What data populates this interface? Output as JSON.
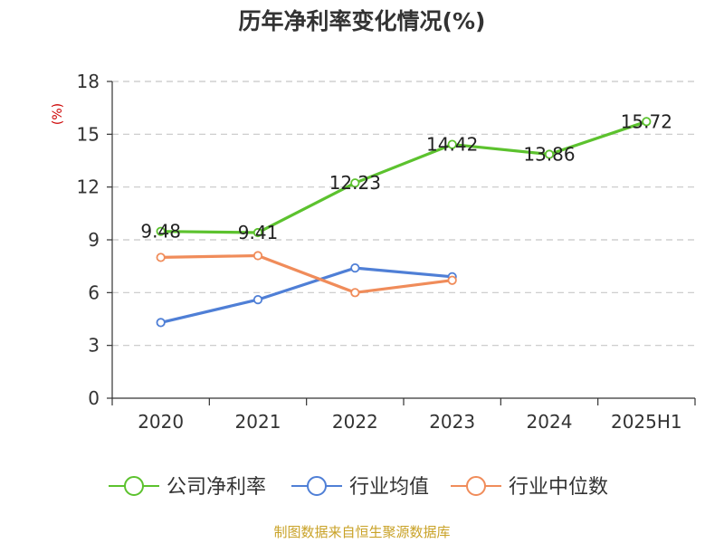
{
  "chart_data": {
    "type": "line",
    "title": "历年净利率变化情况(%)",
    "ylabel": "(%)",
    "xlabel": "",
    "categories": [
      "2020",
      "2021",
      "2022",
      "2023",
      "2024",
      "2025H1"
    ],
    "ylim": [
      0,
      18
    ],
    "yticks": [
      0,
      3,
      6,
      9,
      12,
      15,
      18
    ],
    "grid": "horizontal dashed",
    "legend_position": "bottom",
    "series": [
      {
        "name": "公司净利率",
        "color": "#5cc22e",
        "values": [
          9.48,
          9.41,
          12.23,
          14.42,
          13.86,
          15.72
        ],
        "labels": [
          "9.48",
          "9.41",
          "12.23",
          "14.42",
          "13.86",
          "15.72"
        ]
      },
      {
        "name": "行业均值",
        "color": "#4f7fd6",
        "values": [
          4.3,
          5.6,
          7.4,
          6.9,
          null,
          null
        ]
      },
      {
        "name": "行业中位数",
        "color": "#f08c5a",
        "values": [
          8.0,
          8.1,
          6.0,
          6.7,
          null,
          null
        ]
      }
    ],
    "source": "制图数据来自恒生聚源数据库"
  }
}
